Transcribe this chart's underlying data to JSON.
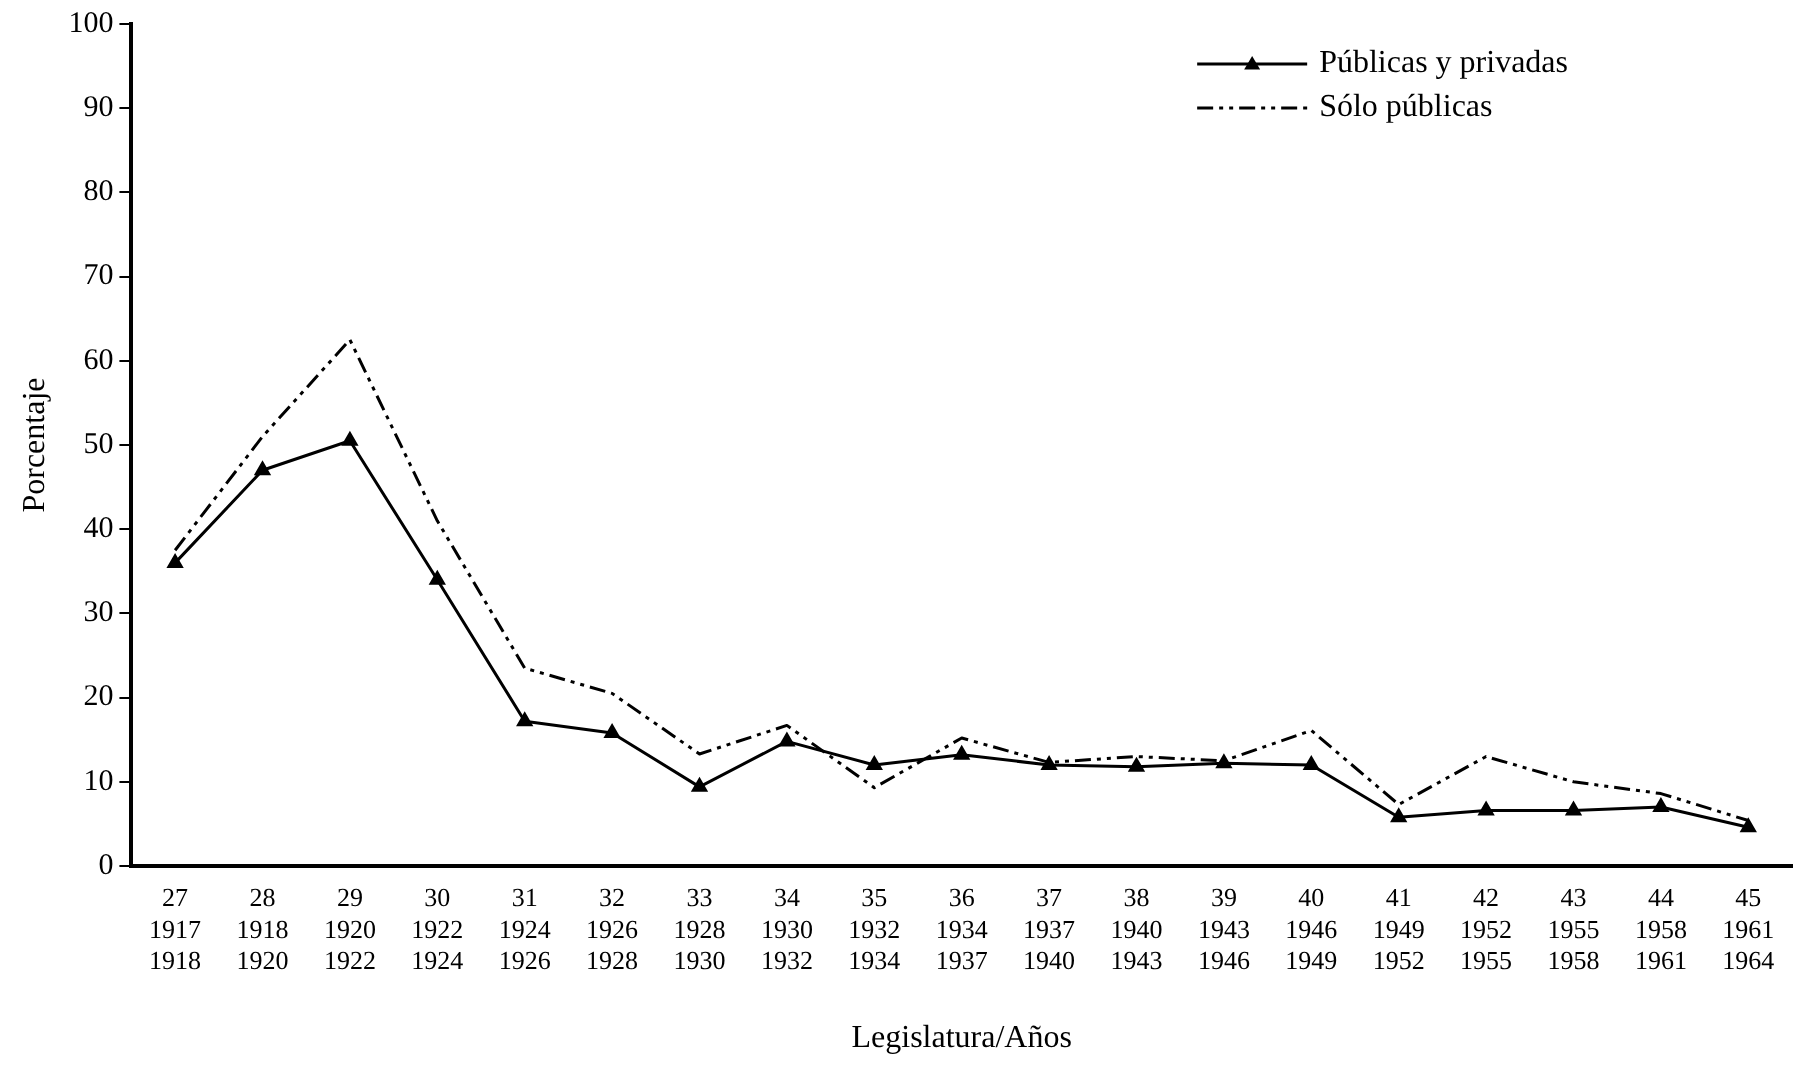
{
  "chart_data": {
    "type": "line",
    "xlabel": "Legislatura/Años",
    "ylabel": "Porcentaje",
    "categories": [
      "27\n1917\n1918",
      "28\n1918\n1920",
      "29\n1920\n1922",
      "30\n1922\n1924",
      "31\n1924\n1926",
      "32\n1926\n1928",
      "33\n1928\n1930",
      "34\n1930\n1932",
      "35\n1932\n1934",
      "36\n1934\n1937",
      "37\n1937\n1940",
      "38\n1940\n1943",
      "39\n1943\n1946",
      "40\n1946\n1949",
      "41\n1949\n1952",
      "42\n1952\n1955",
      "43\n1955\n1958",
      "44\n1958\n1961",
      "45\n1961\n1964"
    ],
    "series": [
      {
        "name": "Públicas y privadas",
        "color": "#000000",
        "marker": "triangle",
        "line_style": "solid",
        "values": [
          36,
          47,
          50.5,
          34,
          17.2,
          15.8,
          9.4,
          14.8,
          12,
          13.2,
          12,
          11.8,
          12.2,
          12,
          5.8,
          6.6,
          6.6,
          7,
          4.6
        ]
      },
      {
        "name": "Sólo públicas",
        "color": "#000000",
        "marker": "none",
        "line_style": "dashed",
        "values": [
          37.5,
          51,
          62.5,
          41,
          23.5,
          20.5,
          13.3,
          16.7,
          9.3,
          15.2,
          12.3,
          13,
          12.5,
          16.1,
          7.3,
          13,
          10,
          8.6,
          5.4
        ]
      }
    ],
    "ylim": [
      0,
      100
    ],
    "yticks": [
      0,
      10,
      20,
      30,
      40,
      50,
      60,
      70,
      80,
      90,
      100
    ],
    "grid": false,
    "legend": "top right"
  }
}
